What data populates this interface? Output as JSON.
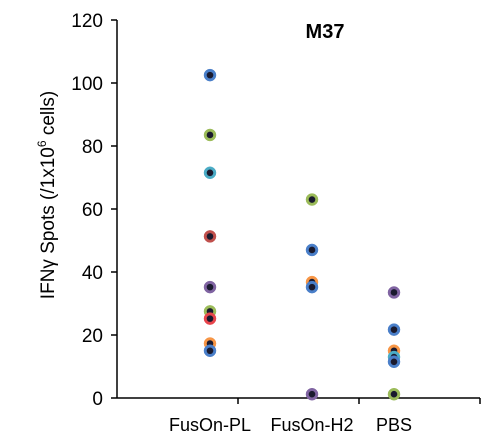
{
  "chart_data": {
    "type": "scatter",
    "title": "M37",
    "ylabel": {
      "before_superscript": "IFNγ Spots (/1x10",
      "superscript": "6",
      "after_superscript": " cells)"
    },
    "xlabel": "",
    "ylim": [
      0,
      120
    ],
    "yticks": [
      0,
      20,
      40,
      60,
      80,
      100,
      120
    ],
    "categories": [
      "FusOn-PL",
      "FusOn-H2",
      "PBS"
    ],
    "grid": false,
    "legend": "none",
    "groups": [
      {
        "category": "FusOn-PL",
        "points": [
          {
            "value": 102.5,
            "color": "#4a7fc9"
          },
          {
            "value": 83.5,
            "color": "#9bbb59"
          },
          {
            "value": 71.5,
            "color": "#4bacc6"
          },
          {
            "value": 51.3,
            "color": "#c0504d"
          },
          {
            "value": 35.2,
            "color": "#8064a2"
          },
          {
            "value": 27.5,
            "color": "#9bbb59"
          },
          {
            "value": 25.2,
            "color": "#e8454b"
          },
          {
            "value": 17.3,
            "color": "#f79646"
          },
          {
            "value": 15.0,
            "color": "#4a7fc9"
          }
        ]
      },
      {
        "category": "FusOn-H2",
        "points": [
          {
            "value": 63.0,
            "color": "#9bbb59"
          },
          {
            "value": 47.0,
            "color": "#4a7fc9"
          },
          {
            "value": 36.8,
            "color": "#f79646"
          },
          {
            "value": 35.2,
            "color": "#4a7fc9"
          },
          {
            "value": 1.2,
            "color": "#8064a2"
          }
        ]
      },
      {
        "category": "PBS",
        "points": [
          {
            "value": 33.5,
            "color": "#8064a2"
          },
          {
            "value": 21.7,
            "color": "#4a7fc9"
          },
          {
            "value": 15.0,
            "color": "#f79646"
          },
          {
            "value": 13.0,
            "color": "#4bacc6"
          },
          {
            "value": 11.5,
            "color": "#4a7fc9"
          },
          {
            "value": 1.2,
            "color": "#9bbb59"
          }
        ]
      }
    ],
    "marker": {
      "center_color": "#1a1a2e"
    }
  }
}
